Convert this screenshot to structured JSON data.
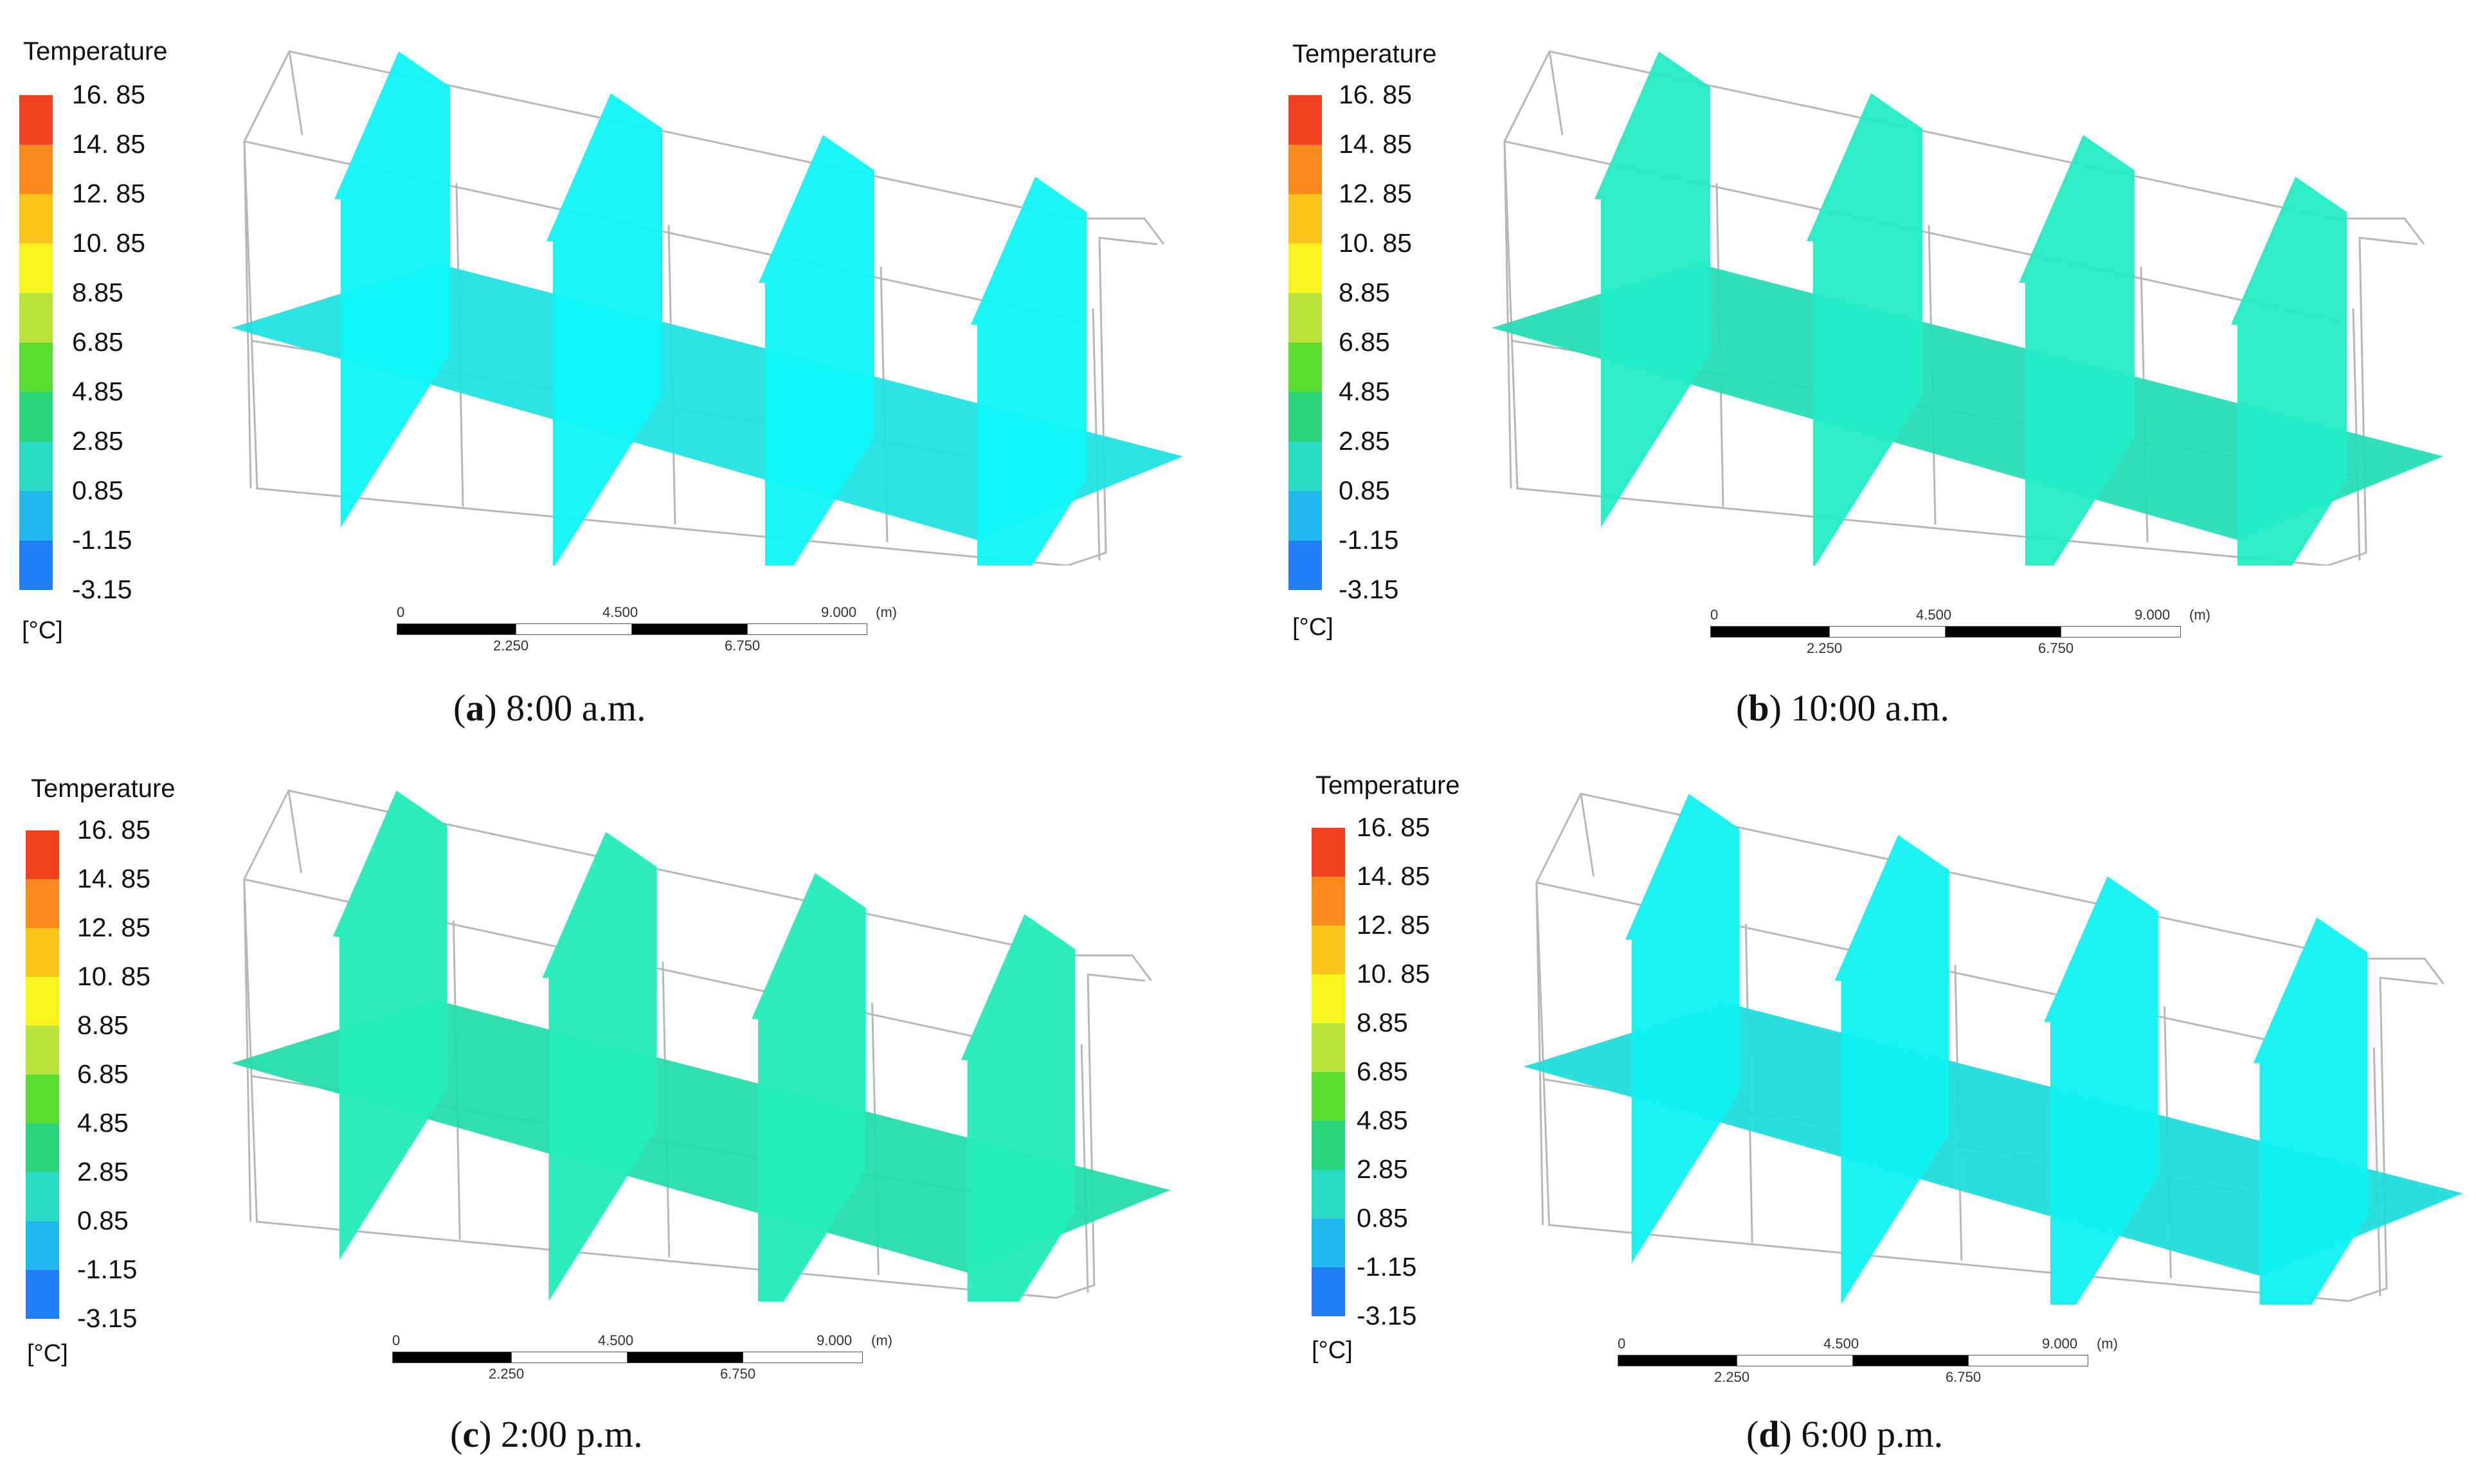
{
  "legend": {
    "title": "Temperature",
    "ticks": [
      "16. 85",
      "14. 85",
      "12. 85",
      "10. 85",
      "8.85",
      "6.85",
      "4.85",
      "2.85",
      "0.85",
      "-1.15",
      "-3.15"
    ],
    "colors": [
      "#f0401e",
      "#fb8a1e",
      "#fbc41a",
      "#f7f31c",
      "#b7e33a",
      "#58dc2e",
      "#2bd37a",
      "#2bdcc4",
      "#22b7ee",
      "#1f7ef3",
      "#1739ee"
    ],
    "unit": "[°C]"
  },
  "scale_bar": {
    "top": [
      "0",
      "4.500",
      "9.000",
      "(m)"
    ],
    "bottom": [
      "2.250",
      "6.750"
    ]
  },
  "panels": [
    {
      "letter": "a",
      "time": "8:00 a.m.",
      "wall_color": "#0ef6f6",
      "floor_color": "#1ae2e2"
    },
    {
      "letter": "b",
      "time": "10:00 a.m.",
      "wall_color": "#22ecc4",
      "floor_color": "#1fdcb4"
    },
    {
      "letter": "c",
      "time": "2:00 p.m.",
      "wall_color": "#22ecb8",
      "floor_color": "#1ddca8"
    },
    {
      "letter": "d",
      "time": "6:00 p.m.",
      "wall_color": "#0ef2f0",
      "floor_color": "#18dcda"
    }
  ]
}
